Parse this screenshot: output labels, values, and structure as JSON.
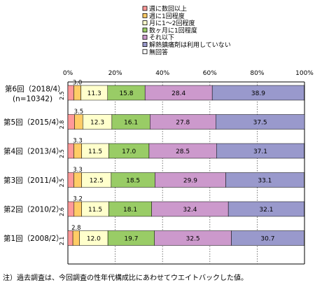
{
  "chart_data": {
    "type": "bar",
    "stacked": true,
    "orientation": "horizontal",
    "categories": [
      "第6回（2018/4）",
      "第5回（2015/4）",
      "第4回（2013/4）",
      "第3回（2011/4）",
      "第2回（2010/2）",
      "第1回（2008/2）"
    ],
    "category_sublabels": [
      "(n=10342)",
      "",
      "",
      "",
      "",
      ""
    ],
    "series": [
      {
        "name": "週に数回以上",
        "color": "#ff9999",
        "values": [
          2.5,
          2.8,
          2.5,
          2.5,
          2.6,
          2.1
        ]
      },
      {
        "name": "週に1回程度",
        "color": "#ffcc66",
        "values": [
          3.0,
          3.5,
          3.3,
          3.3,
          3.2,
          2.8
        ]
      },
      {
        "name": "月に1～2回程度",
        "color": "#ffffcc",
        "values": [
          11.3,
          12.3,
          11.5,
          12.5,
          11.5,
          12.0
        ]
      },
      {
        "name": "数ヶ月に1回程度",
        "color": "#99cc66",
        "values": [
          15.8,
          16.1,
          17.0,
          18.5,
          18.1,
          19.7
        ]
      },
      {
        "name": "それ以下",
        "color": "#cc99cc",
        "values": [
          28.4,
          27.8,
          28.5,
          29.9,
          32.4,
          32.5
        ]
      },
      {
        "name": "解熱鎮痛剤は利用していない",
        "color": "#9999cc",
        "values": [
          38.9,
          37.5,
          37.1,
          33.1,
          32.1,
          30.7
        ]
      },
      {
        "name": "無回答",
        "color": "#ffffff",
        "values": [
          0.1,
          0.0,
          0.1,
          0.2,
          0.1,
          0.2
        ]
      }
    ],
    "value_labels": {
      "週に数回以上": [
        "2.5",
        "2.8",
        "2.5",
        "2.5",
        "2.6",
        "2.1"
      ],
      "週に1回程度": [
        "3.0",
        "3.5",
        "3.3",
        "3.3",
        "3.2",
        "2.8"
      ],
      "月に1～2回程度": [
        "11.3",
        "12.3",
        "11.5",
        "12.5",
        "11.5",
        "12.0"
      ],
      "数ヶ月に1回程度": [
        "15.8",
        "16.1",
        "17.0",
        "18.5",
        "18.1",
        "19.7"
      ],
      "それ以下": [
        "28.4",
        "27.8",
        "28.5",
        "29.9",
        "32.4",
        "32.5"
      ],
      "解熱鎮痛剤は利用していない": [
        "38.9",
        "37.5",
        "37.1",
        "33.1",
        "32.1",
        "30.7"
      ]
    },
    "xlim": [
      0,
      100
    ],
    "xticks": [
      "0%",
      "20%",
      "40%",
      "60%",
      "80%",
      "100%"
    ],
    "grid": true,
    "legend_position": "top"
  },
  "note": "注）過去調査は、今回調査の性年代構成比にあわせてウエイトバックした値。"
}
